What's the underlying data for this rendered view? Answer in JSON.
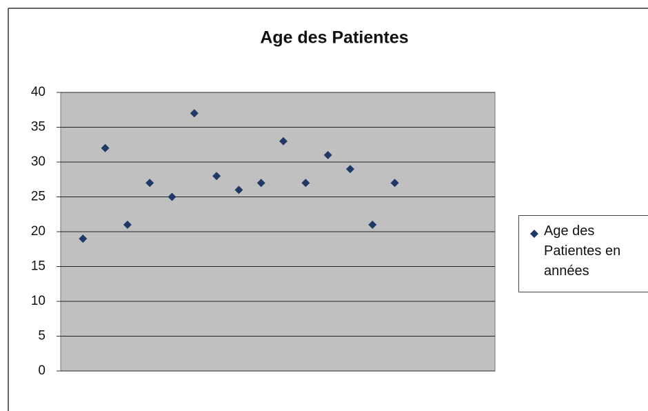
{
  "chart_data": {
    "type": "scatter",
    "title": "Age des Patientes",
    "series": [
      {
        "name": "Age des Patientes en années",
        "color": "#1f3a66",
        "x": [
          1,
          2,
          3,
          4,
          5,
          6,
          7,
          8,
          9,
          10,
          11,
          12,
          13,
          14,
          15
        ],
        "values": [
          19,
          32,
          21,
          27,
          25,
          37,
          28,
          26,
          27,
          33,
          27,
          31,
          29,
          21,
          27
        ]
      }
    ],
    "xlim": [
      0,
      19.5
    ],
    "ylim": [
      0,
      40
    ],
    "yticks": [
      0,
      5,
      10,
      15,
      20,
      25,
      30,
      35,
      40
    ],
    "grid": true,
    "legend": "right"
  }
}
